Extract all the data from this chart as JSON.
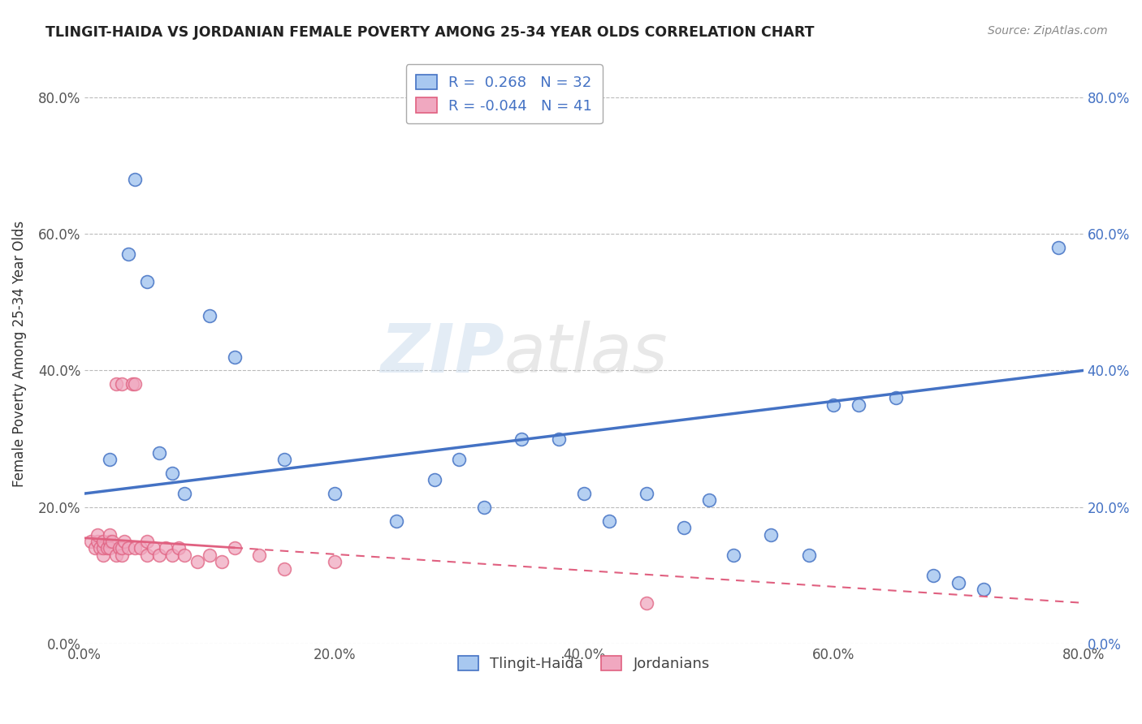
{
  "title": "TLINGIT-HAIDA VS JORDANIAN FEMALE POVERTY AMONG 25-34 YEAR OLDS CORRELATION CHART",
  "source": "Source: ZipAtlas.com",
  "ylabel": "Female Poverty Among 25-34 Year Olds",
  "xlim": [
    0.0,
    0.8
  ],
  "ylim": [
    0.0,
    0.85
  ],
  "xticks": [
    0.0,
    0.2,
    0.4,
    0.6,
    0.8
  ],
  "xtick_labels": [
    "0.0%",
    "20.0%",
    "40.0%",
    "60.0%",
    "80.0%"
  ],
  "yticks": [
    0.0,
    0.2,
    0.4,
    0.6,
    0.8
  ],
  "ytick_labels": [
    "0.0%",
    "20.0%",
    "40.0%",
    "60.0%",
    "80.0%"
  ],
  "right_ytick_labels": [
    "80.0%",
    "60.0%",
    "40.0%",
    "20.0%",
    "0.0%"
  ],
  "tlingit_R": 0.268,
  "tlingit_N": 32,
  "jordan_R": -0.044,
  "jordan_N": 41,
  "tlingit_color": "#a8c8f0",
  "jordan_color": "#f0a8c0",
  "tlingit_line_color": "#4472c4",
  "jordan_line_color": "#e06080",
  "legend_labels": [
    "Tlingit-Haida",
    "Jordanians"
  ],
  "watermark_part1": "ZIP",
  "watermark_part2": "atlas",
  "tlingit_x": [
    0.02,
    0.04,
    0.035,
    0.05,
    0.06,
    0.07,
    0.08,
    0.1,
    0.12,
    0.16,
    0.2,
    0.25,
    0.28,
    0.3,
    0.32,
    0.35,
    0.38,
    0.4,
    0.42,
    0.45,
    0.48,
    0.5,
    0.52,
    0.55,
    0.58,
    0.6,
    0.62,
    0.65,
    0.68,
    0.7,
    0.72,
    0.78
  ],
  "tlingit_y": [
    0.27,
    0.68,
    0.57,
    0.53,
    0.28,
    0.25,
    0.22,
    0.48,
    0.42,
    0.27,
    0.22,
    0.18,
    0.24,
    0.27,
    0.2,
    0.3,
    0.3,
    0.22,
    0.18,
    0.22,
    0.17,
    0.21,
    0.13,
    0.16,
    0.13,
    0.35,
    0.35,
    0.36,
    0.1,
    0.09,
    0.08,
    0.58
  ],
  "jordan_x": [
    0.005,
    0.008,
    0.01,
    0.01,
    0.012,
    0.015,
    0.015,
    0.015,
    0.018,
    0.02,
    0.02,
    0.02,
    0.022,
    0.025,
    0.025,
    0.028,
    0.03,
    0.03,
    0.03,
    0.032,
    0.035,
    0.038,
    0.04,
    0.04,
    0.045,
    0.05,
    0.05,
    0.055,
    0.06,
    0.065,
    0.07,
    0.075,
    0.08,
    0.09,
    0.1,
    0.11,
    0.12,
    0.14,
    0.16,
    0.2,
    0.45
  ],
  "jordan_y": [
    0.15,
    0.14,
    0.15,
    0.16,
    0.14,
    0.13,
    0.14,
    0.15,
    0.14,
    0.15,
    0.14,
    0.16,
    0.15,
    0.13,
    0.38,
    0.14,
    0.13,
    0.14,
    0.38,
    0.15,
    0.14,
    0.38,
    0.14,
    0.38,
    0.14,
    0.13,
    0.15,
    0.14,
    0.13,
    0.14,
    0.13,
    0.14,
    0.13,
    0.12,
    0.13,
    0.12,
    0.14,
    0.13,
    0.11,
    0.12,
    0.06
  ],
  "tlingit_line_start_y": 0.22,
  "tlingit_line_end_y": 0.4,
  "jordan_line_start_y": 0.155,
  "jordan_line_end_y": 0.06
}
